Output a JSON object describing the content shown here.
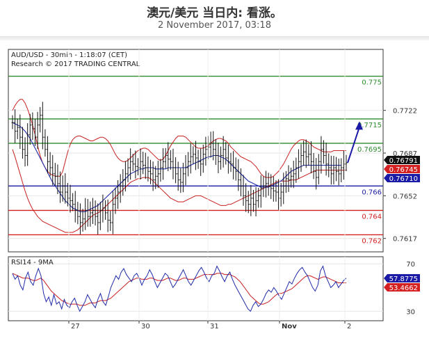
{
  "header": {
    "title": "澳元/美元 当日内: 看涨。",
    "subtitle": "2 November 2017, 03:18"
  },
  "chart_data": [
    {
      "type": "candlestick",
      "title": "AUD/USD - 30min - 1:18:07 (CET)",
      "subtitle": "Research © 2017 TRADING CENTRAL",
      "ylim": [
        0.7606,
        0.7772
      ],
      "y_ticks": [
        0.7722,
        0.7687,
        0.7652,
        0.7617
      ],
      "y_tick_labels": [
        "0.7722",
        "0.7687",
        "0.7652",
        "0.7617"
      ],
      "x_tick_labels": [
        "27",
        "30",
        "31",
        "Nov",
        "2"
      ],
      "levels": [
        {
          "label": "0.775",
          "value": 0.775,
          "color": "#2e8b2e"
        },
        {
          "label": "0.7715",
          "value": 0.7715,
          "color": "#2e8b2e"
        },
        {
          "label": "0.7695",
          "value": 0.7695,
          "color": "#2e8b2e"
        },
        {
          "label": "0.766",
          "value": 0.766,
          "color": "#1a1aa6"
        },
        {
          "label": "0.764",
          "value": 0.764,
          "color": "#d42020"
        },
        {
          "label": "0.762",
          "value": 0.762,
          "color": "#d42020"
        }
      ],
      "price_badges": [
        {
          "label": "0.76791",
          "value": 0.76791,
          "color": "#111111"
        },
        {
          "label": "0.76745",
          "value": 0.76745,
          "color": "#d42020"
        },
        {
          "label": "0.76710",
          "value": 0.7671,
          "color": "#1a1aa6"
        }
      ],
      "close": [
        0.7712,
        0.7705,
        0.7708,
        0.77,
        0.769,
        0.7685,
        0.7702,
        0.771,
        0.7707,
        0.77,
        0.771,
        0.7718,
        0.77,
        0.769,
        0.768,
        0.7675,
        0.767,
        0.7668,
        0.7662,
        0.7655,
        0.766,
        0.7655,
        0.765,
        0.7648,
        0.7645,
        0.764,
        0.7635,
        0.763,
        0.7633,
        0.764,
        0.7635,
        0.7638,
        0.764,
        0.7635,
        0.763,
        0.764,
        0.7642,
        0.7638,
        0.7632,
        0.763,
        0.7645,
        0.765,
        0.7655,
        0.766,
        0.7665,
        0.767,
        0.7675,
        0.768,
        0.7678,
        0.7676,
        0.7675,
        0.768,
        0.7677,
        0.7675,
        0.7672,
        0.767,
        0.7665,
        0.7668,
        0.767,
        0.7675,
        0.768,
        0.7685,
        0.7682,
        0.768,
        0.7675,
        0.767,
        0.7665,
        0.7663,
        0.767,
        0.7675,
        0.768,
        0.7684,
        0.7686,
        0.7683,
        0.768,
        0.7678,
        0.7686,
        0.769,
        0.7692,
        0.7695,
        0.769,
        0.7685,
        0.768,
        0.7685,
        0.769,
        0.7683,
        0.768,
        0.7678,
        0.7675,
        0.7672,
        0.7665,
        0.766,
        0.7652,
        0.7648,
        0.7645,
        0.765,
        0.7645,
        0.7648,
        0.7652,
        0.7658,
        0.766,
        0.7662,
        0.766,
        0.7658,
        0.7656,
        0.7655,
        0.765,
        0.7655,
        0.766,
        0.7666,
        0.7665,
        0.7668,
        0.767,
        0.7675,
        0.768,
        0.7685,
        0.7688,
        0.7684,
        0.7686,
        0.768,
        0.7672,
        0.7667,
        0.768,
        0.769,
        0.7685,
        0.7678,
        0.7675,
        0.767,
        0.7675,
        0.7672,
        0.767,
        0.7675,
        0.7678,
        0.7679
      ],
      "upper_band": [
        0.7722,
        0.7726,
        0.7729,
        0.7731,
        0.7731,
        0.7728,
        0.7723,
        0.7717,
        0.771,
        0.7702,
        0.7693,
        0.7685,
        0.7679,
        0.7675,
        0.7672,
        0.767,
        0.7669,
        0.7668,
        0.7668,
        0.7668,
        0.7672,
        0.768,
        0.7688,
        0.7694,
        0.7698,
        0.77,
        0.7701,
        0.7701,
        0.77,
        0.7699,
        0.7698,
        0.7697,
        0.7697,
        0.7698,
        0.7699,
        0.77,
        0.77,
        0.7699,
        0.7697,
        0.7694,
        0.769,
        0.7686,
        0.7683,
        0.7681,
        0.768,
        0.768,
        0.7681,
        0.7683,
        0.7685,
        0.7687,
        0.7689,
        0.769,
        0.7691,
        0.7691,
        0.769,
        0.7688,
        0.7686,
        0.7684,
        0.7682,
        0.7681,
        0.7682,
        0.7685,
        0.7689,
        0.7693,
        0.7696,
        0.7699,
        0.7701,
        0.7701,
        0.7701,
        0.77,
        0.7698,
        0.7696,
        0.7694,
        0.7692,
        0.7691,
        0.7691,
        0.7691,
        0.7692,
        0.7693,
        0.7695,
        0.7697,
        0.7698,
        0.7699,
        0.7699,
        0.7698,
        0.7697,
        0.7695,
        0.7692,
        0.769,
        0.7688,
        0.7686,
        0.7684,
        0.7683,
        0.7682,
        0.7681,
        0.768,
        0.7678,
        0.7676,
        0.7673,
        0.767,
        0.7668,
        0.7667,
        0.7667,
        0.7667,
        0.7668,
        0.767,
        0.7672,
        0.7675,
        0.7678,
        0.7682,
        0.7686,
        0.769,
        0.7693,
        0.7695,
        0.7697,
        0.7698,
        0.7698,
        0.7697,
        0.7696,
        0.7694,
        0.7692,
        0.7691,
        0.769,
        0.7689,
        0.7688,
        0.7688,
        0.7688,
        0.7688,
        0.7689,
        0.7689,
        0.7689,
        0.7689,
        0.7689,
        0.7689
      ],
      "lower_band": [
        0.769,
        0.7684,
        0.7677,
        0.767,
        0.7663,
        0.7656,
        0.765,
        0.7645,
        0.7641,
        0.7638,
        0.7635,
        0.7633,
        0.7631,
        0.763,
        0.7629,
        0.7628,
        0.7627,
        0.7626,
        0.7625,
        0.7624,
        0.7623,
        0.7622,
        0.7622,
        0.7622,
        0.7622,
        0.7623,
        0.7624,
        0.7626,
        0.7628,
        0.763,
        0.7632,
        0.7634,
        0.7636,
        0.7637,
        0.7638,
        0.7639,
        0.7641,
        0.7643,
        0.7645,
        0.7647,
        0.7649,
        0.7651,
        0.7653,
        0.7655,
        0.7657,
        0.7659,
        0.7661,
        0.7663,
        0.7664,
        0.7665,
        0.7666,
        0.7666,
        0.7667,
        0.7667,
        0.7667,
        0.7666,
        0.7664,
        0.7662,
        0.766,
        0.7658,
        0.7656,
        0.7654,
        0.7652,
        0.765,
        0.7649,
        0.7648,
        0.7647,
        0.7647,
        0.7647,
        0.7648,
        0.7649,
        0.765,
        0.7651,
        0.7652,
        0.7652,
        0.7652,
        0.7651,
        0.765,
        0.7649,
        0.7648,
        0.7647,
        0.7646,
        0.7645,
        0.7644,
        0.7644,
        0.7644,
        0.7645,
        0.7645,
        0.7646,
        0.7647,
        0.7648,
        0.7649,
        0.765,
        0.7651,
        0.7652,
        0.7653,
        0.7654,
        0.7655,
        0.7656,
        0.7657,
        0.7658,
        0.7659,
        0.766,
        0.7661,
        0.7662,
        0.7663,
        0.7664,
        0.7664,
        0.7664,
        0.7664,
        0.7664,
        0.7665,
        0.7665,
        0.7665,
        0.7666,
        0.7667,
        0.7668,
        0.7669,
        0.767,
        0.7671,
        0.7672,
        0.7673,
        0.7673,
        0.7673,
        0.7673,
        0.7673,
        0.7673,
        0.7673,
        0.7673,
        0.7673,
        0.7673,
        0.7673,
        0.7673,
        0.7673
      ],
      "moving_average": [
        0.7712,
        0.7711,
        0.771,
        0.7709,
        0.7707,
        0.7705,
        0.7702,
        0.7699,
        0.7695,
        0.7691,
        0.7687,
        0.7683,
        0.7679,
        0.7675,
        0.7671,
        0.7667,
        0.7663,
        0.766,
        0.7657,
        0.7654,
        0.7651,
        0.7648,
        0.7646,
        0.7644,
        0.7642,
        0.7641,
        0.764,
        0.7639,
        0.7639,
        0.7639,
        0.764,
        0.7641,
        0.7642,
        0.7643,
        0.7644,
        0.7646,
        0.7648,
        0.765,
        0.7652,
        0.7654,
        0.7656,
        0.7658,
        0.766,
        0.7662,
        0.7664,
        0.7666,
        0.7668,
        0.767,
        0.7671,
        0.7672,
        0.7673,
        0.7674,
        0.7674,
        0.7675,
        0.7675,
        0.7675,
        0.7675,
        0.7674,
        0.7674,
        0.7674,
        0.7674,
        0.7674,
        0.7675,
        0.7675,
        0.7675,
        0.7675,
        0.7675,
        0.7675,
        0.7675,
        0.7675,
        0.7676,
        0.7677,
        0.7678,
        0.7679,
        0.768,
        0.7681,
        0.7682,
        0.7683,
        0.7684,
        0.7684,
        0.7685,
        0.7685,
        0.7685,
        0.7684,
        0.7683,
        0.7682,
        0.768,
        0.7678,
        0.7676,
        0.7674,
        0.7672,
        0.767,
        0.7668,
        0.7666,
        0.7664,
        0.7663,
        0.7662,
        0.7661,
        0.766,
        0.7659,
        0.7659,
        0.7659,
        0.7659,
        0.766,
        0.7661,
        0.7662,
        0.7663,
        0.7664,
        0.7666,
        0.7668,
        0.767,
        0.7672,
        0.7673,
        0.7674,
        0.7675,
        0.7676,
        0.7677,
        0.7677,
        0.7677,
        0.7677,
        0.7677,
        0.7677,
        0.7677,
        0.7677,
        0.7677,
        0.7677,
        0.7677,
        0.7677,
        0.7677,
        0.7677,
        0.7677,
        0.7677
      ],
      "arrow": {
        "from_value": 0.7679,
        "to_value": 0.7713
      }
    },
    {
      "type": "line",
      "title": "RSI14 - 9MA",
      "ylim": [
        22,
        76
      ],
      "y_ticks": [
        70,
        30
      ],
      "y_tick_labels": [
        "70",
        "30"
      ],
      "price_badges": [
        {
          "label": "57.8775",
          "value": 57.8775,
          "color": "#1a1aa6"
        },
        {
          "label": "53.4662",
          "value": 53.4662,
          "color": "#d42020"
        }
      ],
      "rsi": [
        62,
        57,
        60,
        52,
        48,
        58,
        63,
        55,
        52,
        60,
        66,
        60,
        45,
        38,
        42,
        35,
        44,
        36,
        38,
        32,
        40,
        35,
        33,
        38,
        41,
        35,
        30,
        34,
        38,
        44,
        40,
        36,
        33,
        40,
        45,
        38,
        35,
        42,
        50,
        55,
        60,
        57,
        63,
        66,
        61,
        58,
        55,
        60,
        62,
        58,
        52,
        57,
        60,
        65,
        61,
        55,
        50,
        54,
        58,
        62,
        60,
        55,
        50,
        53,
        57,
        61,
        65,
        60,
        55,
        52,
        56,
        60,
        64,
        67,
        63,
        58,
        55,
        60,
        62,
        68,
        64,
        59,
        55,
        60,
        63,
        57,
        52,
        48,
        44,
        40,
        36,
        32,
        30,
        35,
        38,
        34,
        36,
        40,
        45,
        48,
        46,
        50,
        47,
        43,
        40,
        45,
        50,
        55,
        53,
        58,
        62,
        65,
        67,
        63,
        60,
        55,
        50,
        47,
        52,
        64,
        68,
        60,
        55,
        50,
        52,
        55,
        50,
        53,
        56,
        58
      ],
      "ma": [
        62,
        61,
        60,
        59,
        58,
        58,
        58,
        57,
        56,
        56,
        57,
        58,
        56,
        53,
        50,
        47,
        45,
        43,
        41,
        39,
        38,
        37,
        36,
        36,
        36,
        36,
        35,
        35,
        35,
        36,
        37,
        37,
        37,
        38,
        39,
        39,
        39,
        40,
        41,
        43,
        45,
        47,
        49,
        51,
        53,
        55,
        56,
        57,
        58,
        58,
        57,
        57,
        57,
        58,
        58,
        57,
        56,
        56,
        56,
        57,
        58,
        58,
        57,
        56,
        56,
        57,
        58,
        58,
        57,
        57,
        57,
        58,
        59,
        60,
        61,
        61,
        61,
        61,
        61,
        62,
        62,
        62,
        61,
        61,
        61,
        60,
        59,
        57,
        55,
        52,
        49,
        46,
        43,
        41,
        39,
        37,
        36,
        36,
        37,
        38,
        40,
        42,
        44,
        45,
        45,
        46,
        47,
        48,
        49,
        51,
        53,
        55,
        57,
        59,
        60,
        60,
        59,
        58,
        57,
        58,
        59,
        59,
        58,
        57,
        56,
        55,
        54,
        54,
        54,
        54
      ]
    }
  ]
}
